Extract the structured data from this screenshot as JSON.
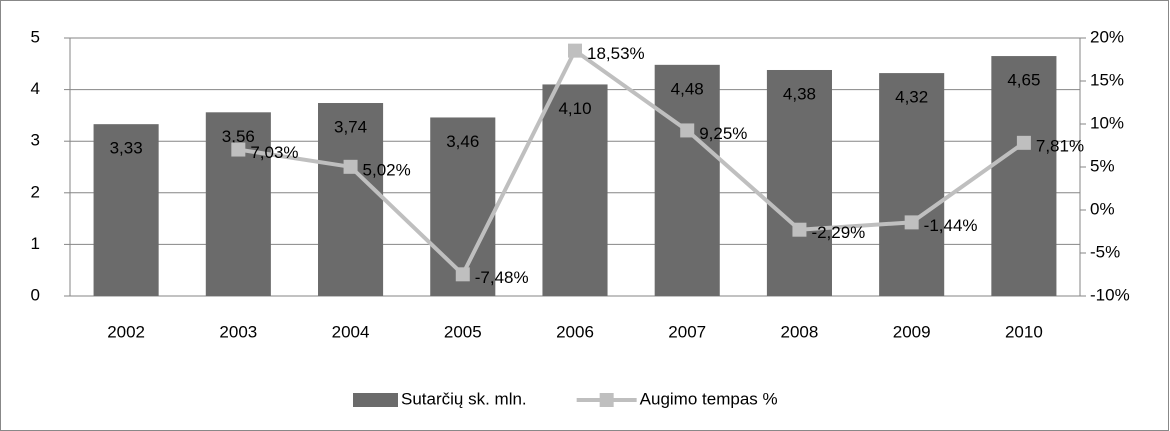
{
  "chart_data": {
    "type": "bar",
    "categories": [
      "2002",
      "2003",
      "2004",
      "2005",
      "2006",
      "2007",
      "2008",
      "2009",
      "2010"
    ],
    "series": [
      {
        "name": "Sutarčių sk. mln.",
        "type": "bar",
        "color": "#6b6b6b",
        "values": [
          3.33,
          3.56,
          3.74,
          3.46,
          4.1,
          4.48,
          4.38,
          4.32,
          4.65
        ],
        "value_labels": [
          "3,33",
          "3,56",
          "3,74",
          "3,46",
          "4,10",
          "4,48",
          "4,38",
          "4,32",
          "4,65"
        ]
      },
      {
        "name": "Augimo tempas %",
        "type": "line",
        "axis": "y2",
        "color": "#bfbfbf",
        "values": [
          null,
          7.03,
          5.02,
          -7.48,
          18.53,
          9.25,
          -2.29,
          -1.44,
          7.81
        ],
        "value_labels": [
          null,
          "7,03%",
          "5,02%",
          "-7,48%",
          "18,53%",
          "9,25%",
          "-2,29%",
          "-1,44%",
          "7,81%"
        ]
      }
    ],
    "ylim": [
      0,
      5
    ],
    "yticks": [
      0,
      1,
      2,
      3,
      4,
      5
    ],
    "y2lim": [
      -10,
      20
    ],
    "y2ticks": [
      {
        "value": -10,
        "label": "-10%"
      },
      {
        "value": -5,
        "label": "-5%"
      },
      {
        "value": 0,
        "label": "0%"
      },
      {
        "value": 5,
        "label": "5%"
      },
      {
        "value": 10,
        "label": "10%"
      },
      {
        "value": 15,
        "label": "15%"
      },
      {
        "value": 20,
        "label": "20%"
      }
    ],
    "grid": true,
    "legend": "bottom"
  }
}
